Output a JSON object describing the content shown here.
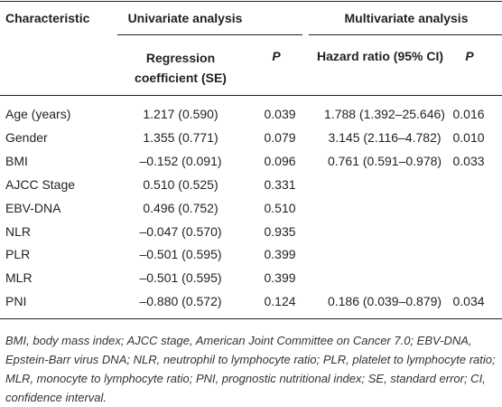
{
  "header": {
    "characteristic": "Characteristic",
    "univariate": "Univariate analysis",
    "multivariate": "Multivariate analysis",
    "columns": [
      "Regression coefficient (SE)",
      "P",
      "Hazard ratio (95% CI)",
      "P"
    ]
  },
  "rows": [
    [
      "Age (years)",
      "1.217 (0.590)",
      "0.039",
      "1.788 (1.392–25.646)",
      "0.016"
    ],
    [
      "Gender",
      "1.355 (0.771)",
      "0.079",
      "3.145 (2.116–4.782)",
      "0.010"
    ],
    [
      "BMI",
      "–0.152 (0.091)",
      "0.096",
      "0.761 (0.591–0.978)",
      "0.033"
    ],
    [
      "AJCC Stage",
      "0.510 (0.525)",
      "0.331"
    ],
    [
      "EBV-DNA",
      "0.496 (0.752)",
      "0.510"
    ],
    [
      "NLR",
      "–0.047 (0.570)",
      "0.935"
    ],
    [
      "PLR",
      "–0.501 (0.595)",
      "0.399"
    ],
    [
      "MLR",
      "–0.501 (0.595)",
      "0.399"
    ],
    [
      "PNI",
      "–0.880 (0.572)",
      "0.124",
      "0.186 (0.039–0.879)",
      "0.034"
    ]
  ],
  "footnote": "BMI, body mass index; AJCC stage, American Joint Committee on Cancer 7.0; EBV-DNA, Epstein-Barr virus DNA; NLR, neutrophil to lymphocyte ratio; PLR, platelet to lymphocyte ratio; MLR, monocyte to lymphocyte ratio; PNI, prognostic nutritional index; SE, standard error; CI, confidence interval."
}
